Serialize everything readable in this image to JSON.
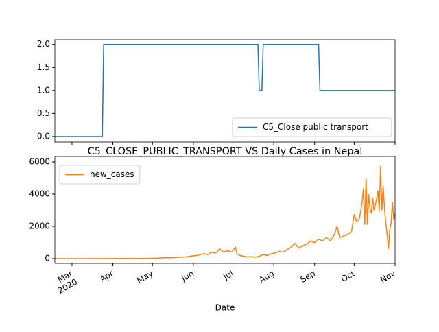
{
  "chart_data": [
    {
      "type": "line",
      "x": [
        -13,
        23,
        24,
        141,
        142,
        144,
        145,
        187,
        188,
        245
      ],
      "series": [
        {
          "name": "C5_Close public transport",
          "color": "#1f77b4",
          "values": [
            0,
            0,
            2,
            2,
            1,
            1,
            2,
            2,
            1,
            1
          ]
        }
      ],
      "xlim": [
        -13,
        245
      ],
      "xticks": [
        0,
        31,
        61,
        92,
        122,
        153,
        184,
        214,
        245
      ],
      "xtick_labels": false,
      "ylim": [
        -0.12,
        2.1
      ],
      "yticks": [
        {
          "value": 0,
          "label": "0.0"
        },
        {
          "value": 0.5,
          "label": "0.5"
        },
        {
          "value": 1,
          "label": "1.0"
        },
        {
          "value": 1.5,
          "label": "1.5"
        },
        {
          "value": 2,
          "label": "2.0"
        }
      ],
      "legend": "lower right"
    },
    {
      "type": "line",
      "title": "C5_CLOSE_PUBLIC_TRANSPORT VS Daily Cases in Nepal",
      "xlabel": "Date",
      "x": [
        -13,
        0,
        10,
        20,
        30,
        40,
        50,
        60,
        65,
        70,
        75,
        80,
        85,
        90,
        95,
        100,
        103,
        106,
        109,
        112,
        115,
        118,
        121,
        124,
        125,
        127,
        130,
        133,
        136,
        139,
        142,
        145,
        148,
        151,
        154,
        157,
        160,
        163,
        166,
        169,
        172,
        175,
        178,
        181,
        184,
        187,
        190,
        193,
        196,
        199,
        201,
        203,
        206,
        209,
        212,
        214,
        216,
        218,
        220,
        221,
        222,
        223,
        224,
        225,
        226,
        227,
        228,
        229,
        230,
        231,
        232,
        233,
        234,
        235,
        236,
        237,
        238,
        239,
        240,
        241,
        242,
        243,
        244,
        245
      ],
      "series": [
        {
          "name": "new_cases",
          "color": "#ff7f0e",
          "values": [
            0,
            1,
            2,
            3,
            5,
            10,
            5,
            20,
            30,
            60,
            50,
            80,
            100,
            150,
            200,
            300,
            250,
            400,
            350,
            600,
            400,
            500,
            400,
            700,
            300,
            200,
            150,
            100,
            120,
            90,
            150,
            250,
            200,
            300,
            350,
            450,
            400,
            550,
            700,
            950,
            650,
            800,
            900,
            1100,
            1000,
            1200,
            1100,
            1300,
            1100,
            1500,
            2000,
            1300,
            1400,
            1500,
            1700,
            2700,
            2300,
            2500,
            3500,
            4350,
            2100,
            5000,
            2100,
            4000,
            3100,
            2800,
            3800,
            3000,
            3300,
            3700,
            4200,
            2900,
            5750,
            3000,
            4500,
            3100,
            2200,
            1500,
            600,
            1800,
            2200,
            3500,
            2400,
            2800
          ]
        }
      ],
      "xlim": [
        -13,
        245
      ],
      "xticks": [
        {
          "value": 0,
          "label": "Mar"
        },
        {
          "value": 31,
          "label": "Apr"
        },
        {
          "value": 61,
          "label": "May"
        },
        {
          "value": 92,
          "label": "Jun"
        },
        {
          "value": 122,
          "label": "Jul"
        },
        {
          "value": 153,
          "label": "Aug"
        },
        {
          "value": 184,
          "label": "Sep"
        },
        {
          "value": 214,
          "label": "Oct"
        },
        {
          "value": 245,
          "label": "Nov"
        }
      ],
      "x_year_label": "2020",
      "ylim": [
        -298,
        6340
      ],
      "yticks": [
        0,
        2000,
        4000,
        6000
      ],
      "legend": "upper left"
    }
  ]
}
